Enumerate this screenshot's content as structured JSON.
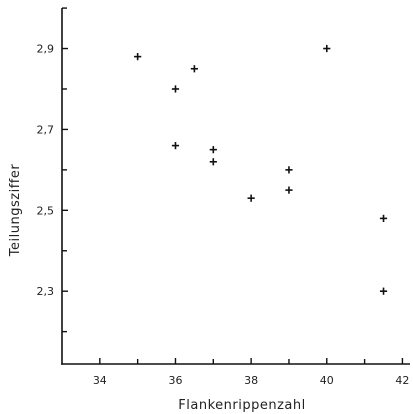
{
  "chart_data": {
    "type": "scatter",
    "xlabel": "Flankenrippenzahl",
    "ylabel": "Teilungsziffer",
    "xlim": [
      33,
      42.2
    ],
    "ylim": [
      2.12,
      3.02
    ],
    "x_ticks": [
      {
        "value": 34,
        "label": "34"
      },
      {
        "value": 36,
        "label": "36"
      },
      {
        "value": 38,
        "label": "38"
      },
      {
        "value": 40,
        "label": "40"
      },
      {
        "value": 42,
        "label": "42"
      }
    ],
    "x_minor_ticks": [
      35,
      37,
      39,
      41
    ],
    "y_ticks": [
      {
        "value": 2.3,
        "label": "2,3"
      },
      {
        "value": 2.5,
        "label": "2,5"
      },
      {
        "value": 2.7,
        "label": "2,7"
      },
      {
        "value": 2.9,
        "label": "2,9"
      }
    ],
    "y_minor_ticks": [
      2.2,
      2.4,
      2.6,
      2.8,
      3.0
    ],
    "marker": "+",
    "grid": false,
    "points": [
      {
        "x": 35.0,
        "y": 2.88
      },
      {
        "x": 36.0,
        "y": 2.8
      },
      {
        "x": 36.5,
        "y": 2.85
      },
      {
        "x": 36.0,
        "y": 2.66
      },
      {
        "x": 37.0,
        "y": 2.65
      },
      {
        "x": 37.0,
        "y": 2.62
      },
      {
        "x": 38.0,
        "y": 2.53
      },
      {
        "x": 39.0,
        "y": 2.6
      },
      {
        "x": 39.0,
        "y": 2.55
      },
      {
        "x": 40.0,
        "y": 2.9
      },
      {
        "x": 41.5,
        "y": 2.48
      },
      {
        "x": 41.5,
        "y": 2.3
      }
    ]
  }
}
